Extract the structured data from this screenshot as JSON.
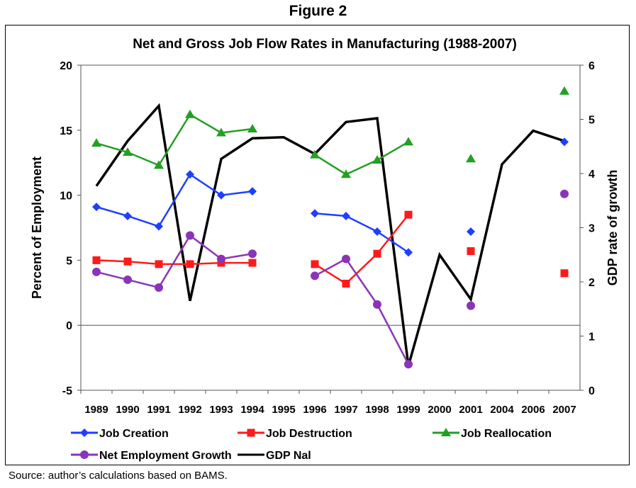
{
  "figure_label": "Figure 2",
  "source_note": "Source: author’s calculations based on BAMS.",
  "chart_data": {
    "type": "line",
    "title": "Net and Gross Job Flow Rates in Manufacturing (1988-2007)",
    "ylabel": "Percent of Employment",
    "y2label": "GDP rate of growth",
    "categories": [
      "1989",
      "1990",
      "1991",
      "1992",
      "1993",
      "1994",
      "1995",
      "1996",
      "1997",
      "1998",
      "1999",
      "2000",
      "2001",
      "2004",
      "2006",
      "2007"
    ],
    "ylim": [
      -5,
      20
    ],
    "y_ticks": [
      -5,
      0,
      5,
      10,
      15,
      20
    ],
    "y2lim": [
      0,
      6
    ],
    "y2_ticks": [
      0,
      1,
      2,
      3,
      4,
      5,
      6
    ],
    "grid": false,
    "legend_position": "bottom",
    "series": [
      {
        "name": "Job Creation",
        "axis": "left",
        "color": "#1f3fff",
        "marker": "diamond",
        "values": [
          9.1,
          8.4,
          7.6,
          11.6,
          10.0,
          10.3,
          null,
          8.6,
          8.4,
          7.2,
          5.6,
          null,
          7.2,
          null,
          null,
          14.1
        ]
      },
      {
        "name": "Job Destruction",
        "axis": "left",
        "color": "#ff1a1a",
        "marker": "square",
        "values": [
          5.0,
          4.9,
          4.7,
          4.7,
          4.8,
          4.8,
          null,
          4.7,
          3.2,
          5.5,
          8.5,
          null,
          5.7,
          null,
          null,
          4.0
        ]
      },
      {
        "name": "Job Reallocation",
        "axis": "left",
        "color": "#22a022",
        "marker": "triangle",
        "values": [
          14.0,
          13.3,
          12.3,
          16.2,
          14.8,
          15.1,
          null,
          13.1,
          11.6,
          12.7,
          14.1,
          null,
          12.8,
          null,
          null,
          18.0
        ]
      },
      {
        "name": "Net Employment Growth",
        "axis": "left",
        "color": "#8a35b8",
        "marker": "circle",
        "values": [
          4.1,
          3.5,
          2.9,
          6.9,
          5.1,
          5.5,
          null,
          3.8,
          5.1,
          1.6,
          -3.0,
          null,
          1.5,
          null,
          null,
          10.1
        ]
      },
      {
        "name": "GDP Nal",
        "axis": "right",
        "color": "#000000",
        "marker": "none",
        "values": [
          3.77,
          4.6,
          5.25,
          1.65,
          4.27,
          4.65,
          4.67,
          4.36,
          4.95,
          5.02,
          0.45,
          2.5,
          1.68,
          4.17,
          4.79,
          4.6
        ]
      }
    ]
  }
}
